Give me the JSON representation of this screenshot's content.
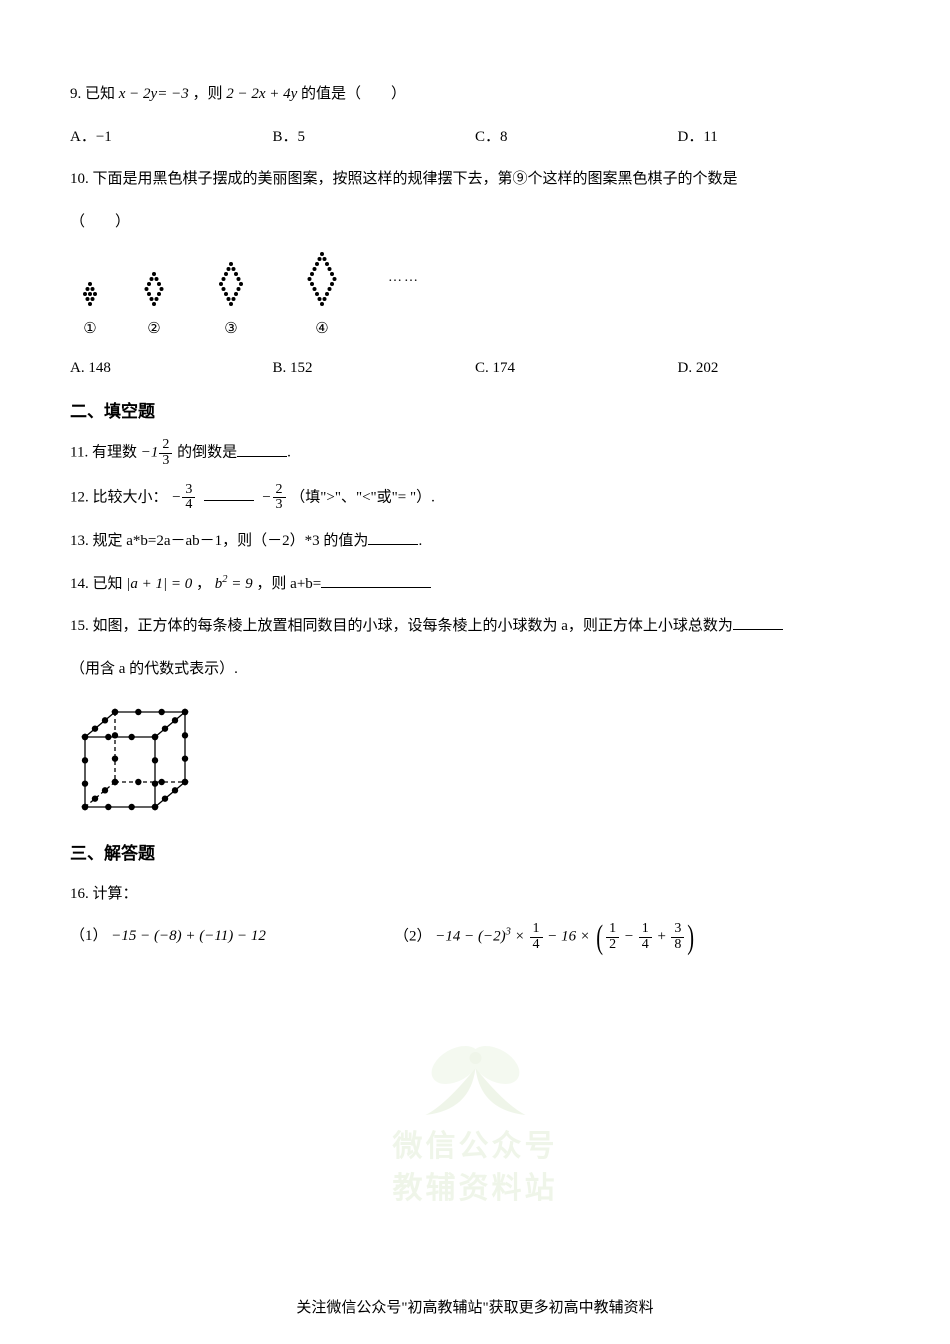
{
  "q9": {
    "num": "9.",
    "stem_pre": "已知",
    "expr1_lhs": "x − 2y",
    "expr1_rhs": "= −3",
    "stem_mid": "，则",
    "expr2": "2 − 2x + 4y",
    "stem_post": "的值是（　　）",
    "opts": {
      "A": "A．−1",
      "B": "B．5",
      "C": "C．8",
      "D": "D．11"
    }
  },
  "q10": {
    "num": "10.",
    "stem": "下面是用黑色棋子摆成的美丽图案，按照这样的规律摆下去，第⑨个这样的图案黑色棋子的个数是",
    "paren": "（　　）",
    "labels": {
      "l1": "①",
      "l2": "②",
      "l3": "③",
      "l4": "④"
    },
    "ellipsis": "……",
    "opts": {
      "A": "A. 148",
      "B": "B. 152",
      "C": "C. 174",
      "D": "D. 202"
    },
    "pattern": {
      "dot_color": "#000000",
      "dot_radius": 2.0,
      "spacing": 5.0
    }
  },
  "section2": "二、填空题",
  "q11": {
    "num": "11.",
    "pre": "有理数",
    "minus": "−1",
    "frac_n": "2",
    "frac_d": "3",
    "post": "的倒数是",
    "period": "."
  },
  "q12": {
    "num": "12.",
    "pre": "比较大小：",
    "minus1": "−",
    "f1n": "3",
    "f1d": "4",
    "minus2": "−",
    "f2n": "2",
    "f2d": "3",
    "post": "（填\">\"、\"<\"或\"= \"）."
  },
  "q13": {
    "num": "13.",
    "text_pre": "规定 a*b=2a－ab－1，则（－2）*3 的值为",
    "period": "."
  },
  "q14": {
    "num": "14.",
    "pre": "已知",
    "abs_expr": "|a + 1| = 0",
    "sep": "，",
    "b_expr_lhs": "b",
    "b_sup": "2",
    "b_expr_rhs": " = 9",
    "post": "，则 a+b="
  },
  "q15": {
    "num": "15.",
    "line1": "如图，正方体的每条棱上放置相同数目的小球，设每条棱上的小球数为 a，则正方体上小球总数为",
    "line2": "（用含 a 的代数式表示）.",
    "cube": {
      "dot_color": "#000000",
      "dot_radius": 3.2
    }
  },
  "section3": "三、解答题",
  "q16": {
    "num": "16.",
    "title": "计算：",
    "c1_label": "（1）",
    "c1_expr": "−15 − (−8) + (−11) − 12",
    "c2_label": "（2）",
    "c2_p1": "−14 − (−2)",
    "c2_sup": "3",
    "c2_p2": " × ",
    "f1n": "1",
    "f1d": "4",
    "c2_p3": " − 16 × ",
    "f2n": "1",
    "f2d": "2",
    "c2_m1": " − ",
    "f3n": "1",
    "f3d": "4",
    "c2_m2": " + ",
    "f4n": "3",
    "f4d": "8"
  },
  "watermark": {
    "line1": "微信公众号",
    "line2": "教辅资料站",
    "color": "#7fb04f"
  },
  "footer": "关注微信公众号\"初高教辅站\"获取更多初高中教辅资料"
}
